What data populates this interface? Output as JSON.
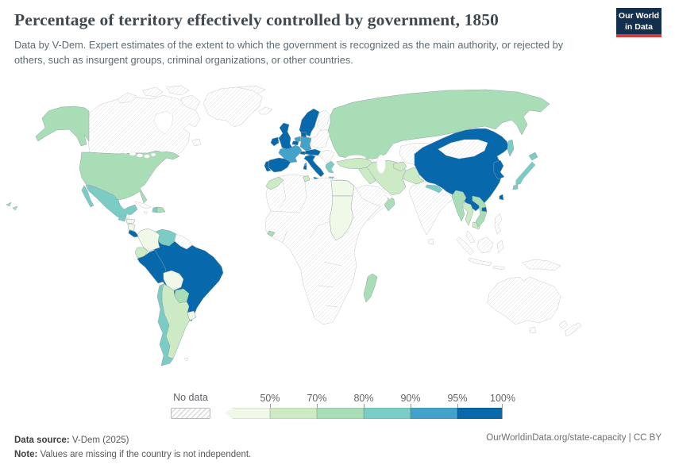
{
  "header": {
    "title": "Percentage of territory effectively controlled by government, 1850",
    "subtitle": "Data by V-Dem. Expert estimates of the extent to which the government is recognized as the main authority, or rejected by others, such as insurgent groups, criminal organizations, or other countries.",
    "logo": {
      "line1": "Our World",
      "line2": "in Data"
    }
  },
  "legend": {
    "no_data_label": "No data",
    "ticks": [
      "50%",
      "70%",
      "80%",
      "90%",
      "95%",
      "100%"
    ]
  },
  "footer": {
    "source_label": "Data source:",
    "source_value": " V-Dem (2025)",
    "note_label": "Note:",
    "note_value": " Values are missing if the country is not independent.",
    "link": "OurWorldinData.org/state-capacity",
    "license_suffix": " | CC BY"
  },
  "chart_data": {
    "type": "choropleth-map",
    "title": "Percentage of territory effectively controlled by government",
    "year": 1850,
    "unit": "% of territory effectively controlled",
    "legend_position": "bottom",
    "bucket_ranges": [
      "<50%",
      "50-70%",
      "70-80%",
      "80-90%",
      "90-95%",
      "95-100%"
    ],
    "bucket_colors": [
      "#f0f9e8",
      "#ccebc5",
      "#a8ddb5",
      "#7bccc4",
      "#43a2ca",
      "#0868ac"
    ],
    "no_data_style": "hatched",
    "countries": [
      {
        "id": "canada",
        "name": "British North America (Canada)",
        "bucket": null
      },
      {
        "id": "greenland",
        "name": "Greenland",
        "bucket": null
      },
      {
        "id": "russian-america",
        "name": "Alaska (Russian America)",
        "bucket": 2
      },
      {
        "id": "united-states",
        "name": "United States",
        "bucket": 2
      },
      {
        "id": "hawaii",
        "name": "Hawaii",
        "bucket": 2
      },
      {
        "id": "mexico",
        "name": "Mexico",
        "bucket": 3
      },
      {
        "id": "guatemala",
        "name": "Guatemala",
        "bucket": 3
      },
      {
        "id": "belize",
        "name": "Belize",
        "bucket": null
      },
      {
        "id": "honduras",
        "name": "Honduras",
        "bucket": 0
      },
      {
        "id": "nicaragua",
        "name": "Nicaragua",
        "bucket": 0
      },
      {
        "id": "costa-rica",
        "name": "Costa Rica",
        "bucket": 5
      },
      {
        "id": "panama",
        "name": "Panama",
        "bucket": 0
      },
      {
        "id": "cuba",
        "name": "Cuba",
        "bucket": null
      },
      {
        "id": "jamaica",
        "name": "Jamaica",
        "bucket": null
      },
      {
        "id": "haiti",
        "name": "Haiti",
        "bucket": 3
      },
      {
        "id": "dominican-republic",
        "name": "Dominican Republic",
        "bucket": 2
      },
      {
        "id": "colombia",
        "name": "Colombia",
        "bucket": 0
      },
      {
        "id": "venezuela",
        "name": "Venezuela",
        "bucket": 3
      },
      {
        "id": "guianas",
        "name": "Guianas",
        "bucket": null
      },
      {
        "id": "ecuador",
        "name": "Ecuador",
        "bucket": 1
      },
      {
        "id": "peru",
        "name": "Peru",
        "bucket": 5
      },
      {
        "id": "brazil",
        "name": "Brazil",
        "bucket": 5
      },
      {
        "id": "bolivia",
        "name": "Bolivia",
        "bucket": 0
      },
      {
        "id": "paraguay",
        "name": "Paraguay",
        "bucket": 2
      },
      {
        "id": "uruguay",
        "name": "Uruguay",
        "bucket": 0
      },
      {
        "id": "argentina",
        "name": "Argentina",
        "bucket": 1
      },
      {
        "id": "chile",
        "name": "Chile",
        "bucket": 3
      },
      {
        "id": "falkland-islands",
        "name": "Falkland Islands",
        "bucket": null
      },
      {
        "id": "iceland",
        "name": "Iceland",
        "bucket": null
      },
      {
        "id": "united-kingdom",
        "name": "United Kingdom",
        "bucket": 5
      },
      {
        "id": "sweden-norway",
        "name": "Sweden-Norway",
        "bucket": 5
      },
      {
        "id": "denmark",
        "name": "Denmark",
        "bucket": 5
      },
      {
        "id": "finland",
        "name": "Finland",
        "bucket": null
      },
      {
        "id": "poland-baltics",
        "name": "Poland and Baltics",
        "bucket": null
      },
      {
        "id": "netherlands",
        "name": "Netherlands",
        "bucket": 4
      },
      {
        "id": "belgium",
        "name": "Belgium",
        "bucket": 5
      },
      {
        "id": "germany",
        "name": "Germany (Prussia)",
        "bucket": 4
      },
      {
        "id": "france",
        "name": "France",
        "bucket": 4
      },
      {
        "id": "switzerland",
        "name": "Switzerland",
        "bucket": 5
      },
      {
        "id": "austria",
        "name": "Austria",
        "bucket": 5
      },
      {
        "id": "spain",
        "name": "Spain",
        "bucket": 5
      },
      {
        "id": "portugal",
        "name": "Portugal",
        "bucket": 5
      },
      {
        "id": "italy",
        "name": "Italy",
        "bucket": 5
      },
      {
        "id": "balkans",
        "name": "Ottoman Balkans",
        "bucket": null
      },
      {
        "id": "greece",
        "name": "Greece",
        "bucket": 3
      },
      {
        "id": "russia",
        "name": "Russia",
        "bucket": 2
      },
      {
        "id": "sakhalin",
        "name": "Sakhalin",
        "bucket": 3
      },
      {
        "id": "caucasus",
        "name": "Caucasus",
        "bucket": null
      },
      {
        "id": "morocco",
        "name": "Morocco",
        "bucket": 1
      },
      {
        "id": "tunisia",
        "name": "Tunisia",
        "bucket": 1
      },
      {
        "id": "egypt",
        "name": "Egypt",
        "bucket": 0
      },
      {
        "id": "sudan",
        "name": "Sudan",
        "bucket": 0
      },
      {
        "id": "liberia",
        "name": "Liberia",
        "bucket": 2
      },
      {
        "id": "madagascar",
        "name": "Madagascar",
        "bucket": 2
      },
      {
        "id": "africa-other",
        "name": "Rest of Africa",
        "bucket": null
      },
      {
        "id": "ottoman-empire",
        "name": "Ottoman Empire",
        "bucket": 1
      },
      {
        "id": "arabia",
        "name": "Arabia",
        "bucket": null
      },
      {
        "id": "oman",
        "name": "Oman",
        "bucket": 2
      },
      {
        "id": "persia",
        "name": "Persia (Iran)",
        "bucket": 1
      },
      {
        "id": "afghanistan",
        "name": "Afghanistan",
        "bucket": 1
      },
      {
        "id": "central-asia",
        "name": "Central Asia",
        "bucket": null
      },
      {
        "id": "khiva-bukhara",
        "name": "Khiva and Bukhara",
        "bucket": 1
      },
      {
        "id": "india",
        "name": "India (British)",
        "bucket": null
      },
      {
        "id": "ceylon",
        "name": "Ceylon",
        "bucket": null
      },
      {
        "id": "nepal",
        "name": "Nepal",
        "bucket": 3
      },
      {
        "id": "burma",
        "name": "Burma",
        "bucket": 2
      },
      {
        "id": "siam",
        "name": "Siam (Thailand)",
        "bucket": 1
      },
      {
        "id": "cambodia",
        "name": "Cambodia",
        "bucket": 1
      },
      {
        "id": "vietnam",
        "name": "Vietnam (Dai Nam)",
        "bucket": 2
      },
      {
        "id": "china",
        "name": "China",
        "bucket": 5
      },
      {
        "id": "mongolia",
        "name": "Mongolia",
        "bucket": null
      },
      {
        "id": "korea",
        "name": "Korea",
        "bucket": 5
      },
      {
        "id": "japan",
        "name": "Japan",
        "bucket": 3
      },
      {
        "id": "taiwan",
        "name": "Taiwan",
        "bucket": 5
      },
      {
        "id": "hainan",
        "name": "Hainan",
        "bucket": 5
      },
      {
        "id": "malaya",
        "name": "Malaya",
        "bucket": null
      },
      {
        "id": "indonesia",
        "name": "Dutch East Indies",
        "bucket": null
      },
      {
        "id": "philippines",
        "name": "Philippines",
        "bucket": null
      },
      {
        "id": "new-guinea",
        "name": "New Guinea",
        "bucket": null
      },
      {
        "id": "australia",
        "name": "Australia",
        "bucket": null
      },
      {
        "id": "new-zealand",
        "name": "New Zealand",
        "bucket": null
      }
    ]
  }
}
